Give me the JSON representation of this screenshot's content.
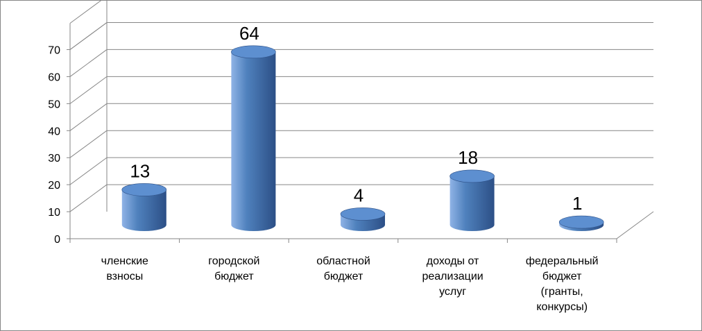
{
  "chart_data": {
    "type": "bar",
    "style": "3d-cylinder",
    "categories": [
      [
        "членские",
        "взносы"
      ],
      [
        "городской",
        "бюджет"
      ],
      [
        "областной",
        "бюджет"
      ],
      [
        "доходы от",
        "реализации",
        "услуг"
      ],
      [
        "федеральный",
        "бюджет",
        "(гранты,",
        "конкурсы)"
      ]
    ],
    "values": [
      13,
      64,
      4,
      18,
      1
    ],
    "data_labels": [
      "13",
      "64",
      "4",
      "18",
      "1"
    ],
    "ylim": [
      0,
      70
    ],
    "yticks": [
      "0",
      "10",
      "20",
      "30",
      "40",
      "50",
      "60",
      "70"
    ],
    "grid": true,
    "legend": "none",
    "colors": {
      "bar_light": "#8fb3e6",
      "bar_mid": "#4f81bd",
      "bar_dark": "#2c4f86",
      "bar_top": "#5d8fd0",
      "grid": "#868686",
      "axis": "#868686"
    }
  }
}
